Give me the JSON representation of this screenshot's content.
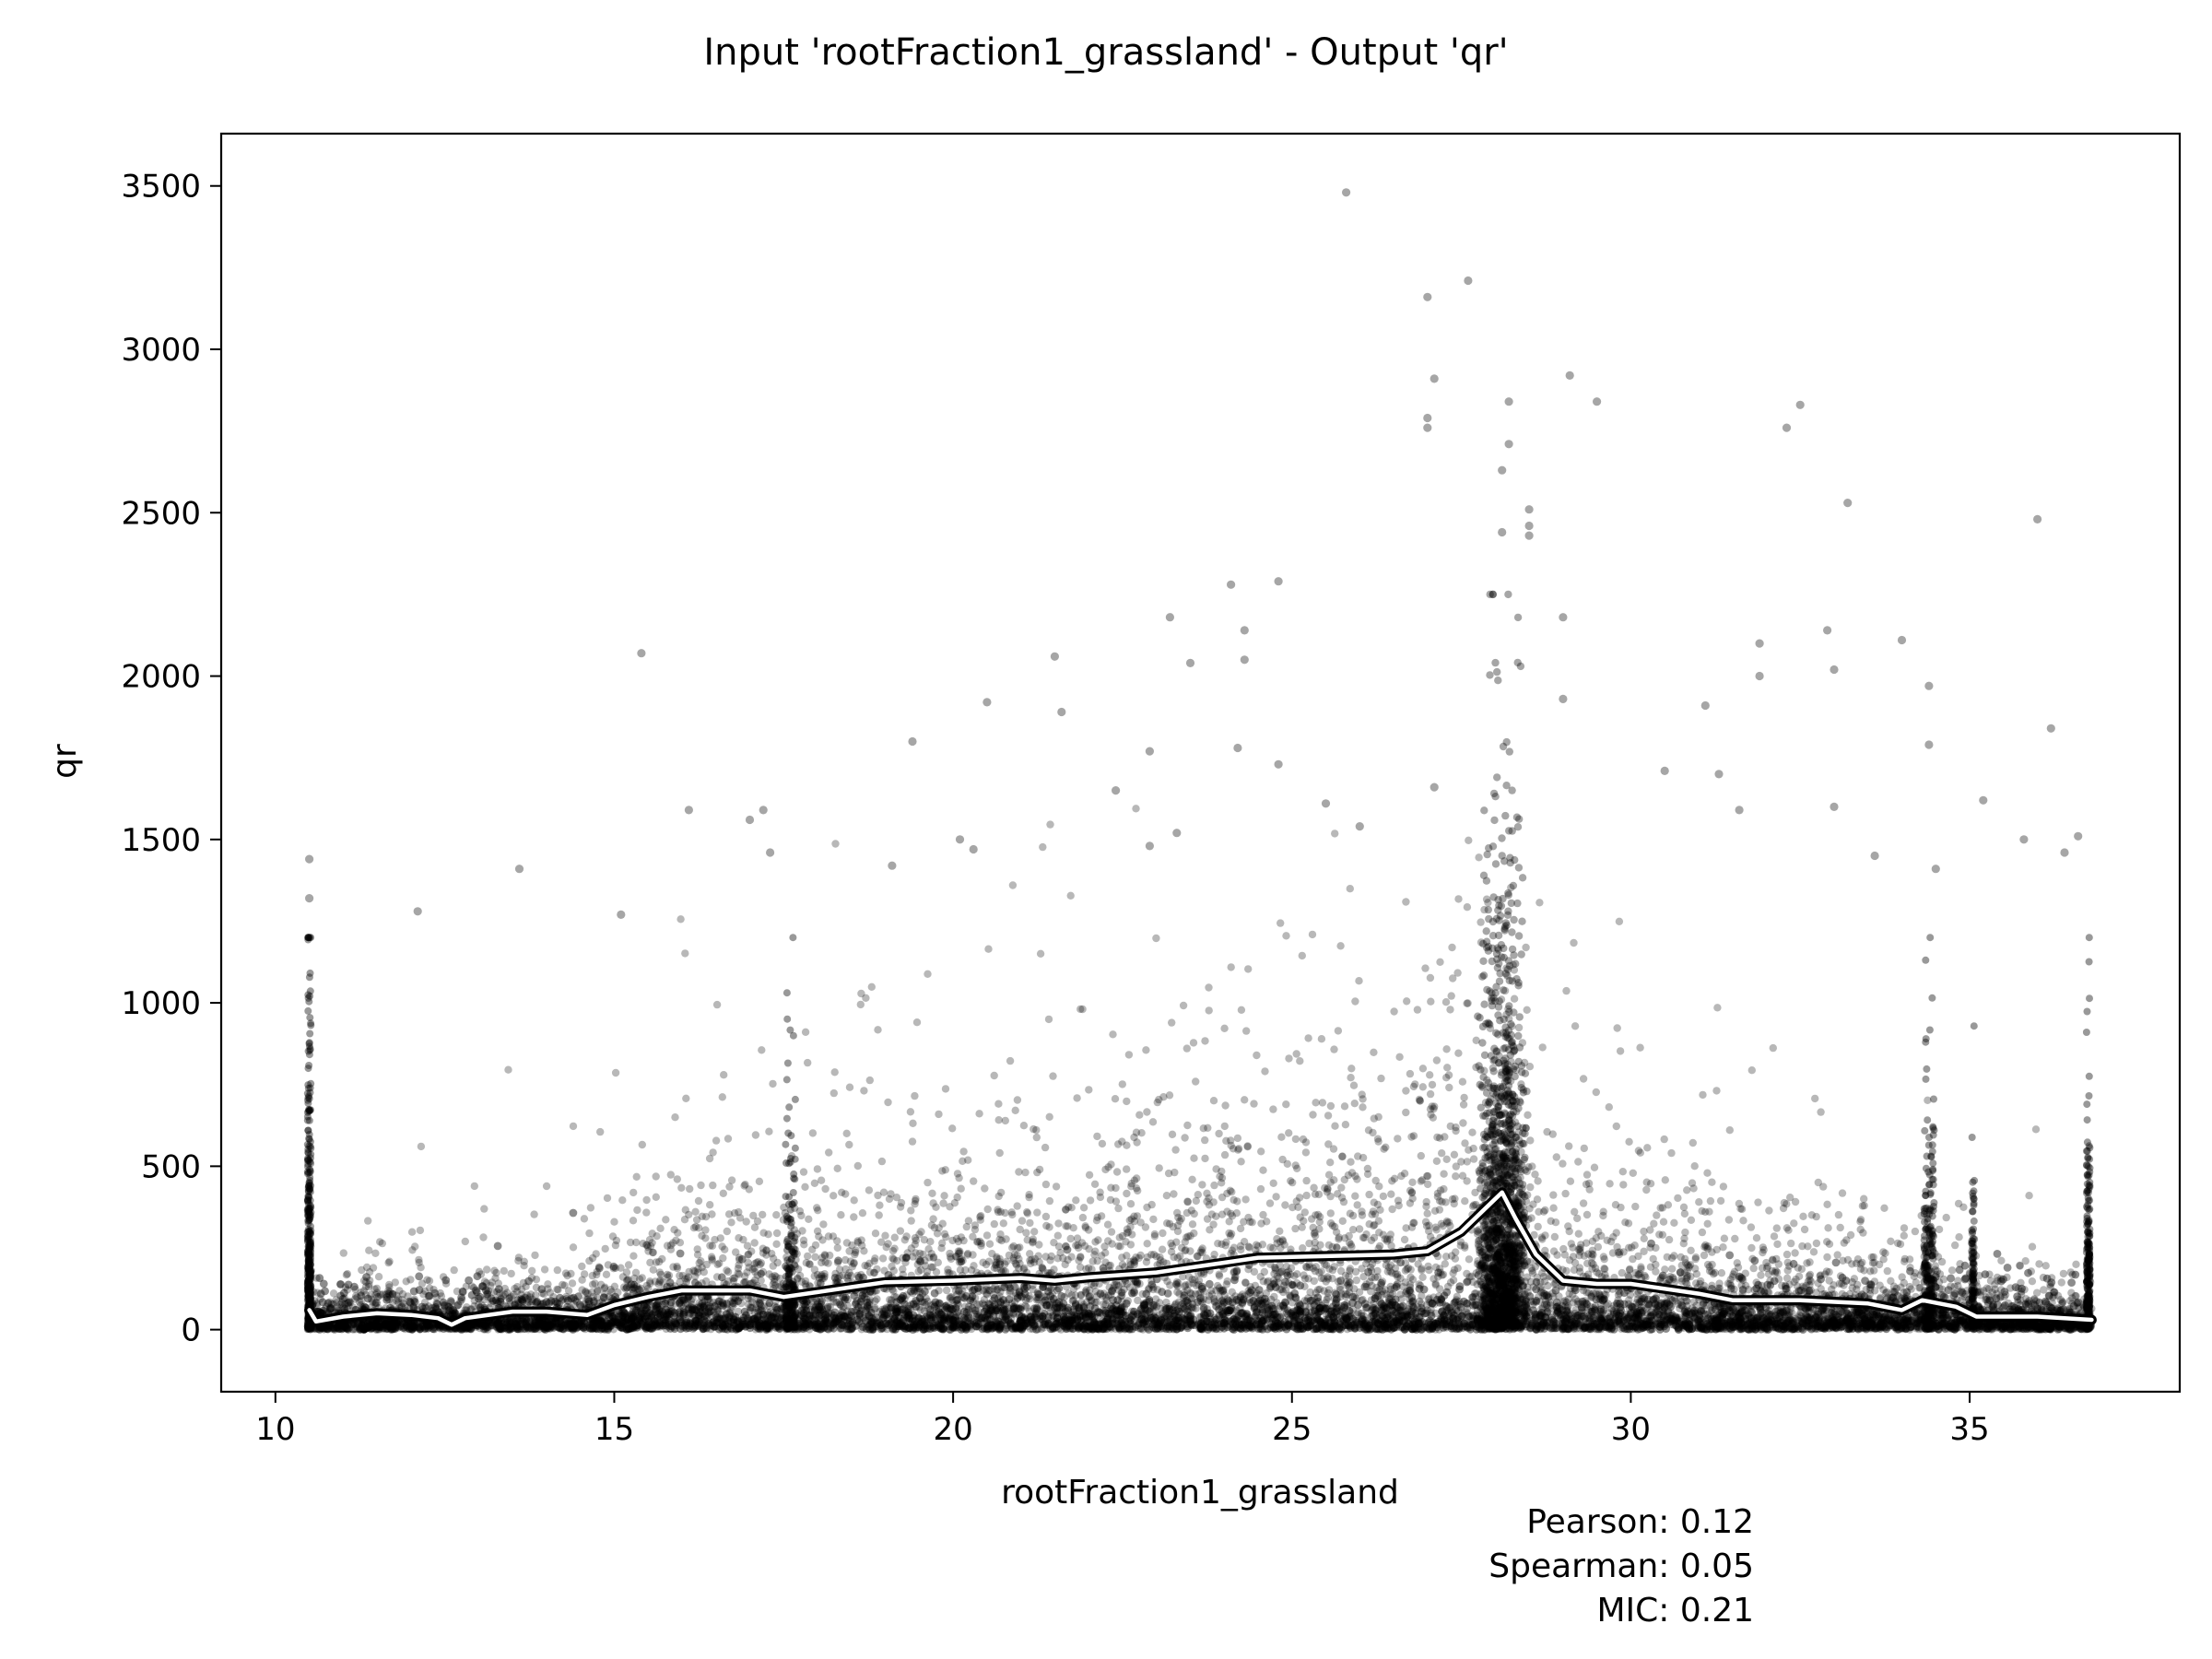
{
  "chart_data": {
    "type": "scatter",
    "title": "Input 'rootFraction1_grassland' - Output 'qr'",
    "xlabel": "rootFraction1_grassland",
    "ylabel": "qr",
    "xlim": [
      9.2,
      38.1
    ],
    "ylim": [
      -190,
      3660
    ],
    "x_ticks": [
      10,
      15,
      20,
      25,
      30,
      35
    ],
    "y_ticks": [
      0,
      500,
      1000,
      1500,
      2000,
      2500,
      3000,
      3500
    ],
    "grid": false,
    "x_range_points": [
      10.5,
      36.8
    ],
    "point_color": "#000000",
    "trend_color": "#ffffff",
    "outliers": [
      {
        "x": 25.8,
        "y": 3480
      },
      {
        "x": 27.6,
        "y": 3210
      },
      {
        "x": 27.0,
        "y": 3160
      },
      {
        "x": 29.1,
        "y": 2920
      },
      {
        "x": 27.1,
        "y": 2910
      },
      {
        "x": 28.2,
        "y": 2840
      },
      {
        "x": 32.5,
        "y": 2830
      },
      {
        "x": 29.5,
        "y": 2840
      },
      {
        "x": 27.0,
        "y": 2790
      },
      {
        "x": 27.0,
        "y": 2760
      },
      {
        "x": 32.3,
        "y": 2760
      },
      {
        "x": 28.2,
        "y": 2710
      },
      {
        "x": 28.1,
        "y": 2630
      },
      {
        "x": 33.2,
        "y": 2530
      },
      {
        "x": 28.5,
        "y": 2510
      },
      {
        "x": 36.0,
        "y": 2480
      },
      {
        "x": 28.5,
        "y": 2460
      },
      {
        "x": 28.1,
        "y": 2440
      },
      {
        "x": 28.5,
        "y": 2430
      },
      {
        "x": 24.8,
        "y": 2290
      },
      {
        "x": 24.1,
        "y": 2280
      },
      {
        "x": 23.2,
        "y": 2180
      },
      {
        "x": 29.0,
        "y": 2180
      },
      {
        "x": 24.3,
        "y": 2140
      },
      {
        "x": 32.9,
        "y": 2140
      },
      {
        "x": 34.0,
        "y": 2110
      },
      {
        "x": 31.9,
        "y": 2100
      },
      {
        "x": 15.4,
        "y": 2070
      },
      {
        "x": 21.5,
        "y": 2060
      },
      {
        "x": 24.3,
        "y": 2050
      },
      {
        "x": 23.5,
        "y": 2040
      },
      {
        "x": 33.0,
        "y": 2020
      },
      {
        "x": 31.9,
        "y": 2000
      },
      {
        "x": 34.4,
        "y": 1970
      },
      {
        "x": 20.5,
        "y": 1920
      },
      {
        "x": 29.0,
        "y": 1930
      },
      {
        "x": 31.1,
        "y": 1910
      },
      {
        "x": 21.6,
        "y": 1890
      },
      {
        "x": 36.2,
        "y": 1840
      },
      {
        "x": 19.4,
        "y": 1800
      },
      {
        "x": 34.4,
        "y": 1790
      },
      {
        "x": 22.9,
        "y": 1770
      },
      {
        "x": 24.2,
        "y": 1780
      },
      {
        "x": 30.5,
        "y": 1710
      },
      {
        "x": 31.3,
        "y": 1700
      },
      {
        "x": 22.4,
        "y": 1650
      },
      {
        "x": 35.2,
        "y": 1620
      },
      {
        "x": 16.1,
        "y": 1590
      },
      {
        "x": 17.2,
        "y": 1590
      },
      {
        "x": 17.0,
        "y": 1560
      },
      {
        "x": 31.6,
        "y": 1590
      },
      {
        "x": 20.1,
        "y": 1500
      },
      {
        "x": 20.3,
        "y": 1470
      },
      {
        "x": 17.3,
        "y": 1460
      },
      {
        "x": 13.6,
        "y": 1410
      },
      {
        "x": 19.1,
        "y": 1420
      },
      {
        "x": 12.1,
        "y": 1280
      },
      {
        "x": 10.5,
        "y": 1440
      },
      {
        "x": 10.5,
        "y": 1320
      },
      {
        "x": 15.1,
        "y": 1270
      },
      {
        "x": 36.6,
        "y": 1510
      },
      {
        "x": 36.4,
        "y": 1460
      },
      {
        "x": 35.8,
        "y": 1500
      },
      {
        "x": 34.5,
        "y": 1410
      },
      {
        "x": 33.6,
        "y": 1450
      },
      {
        "x": 33.0,
        "y": 1600
      },
      {
        "x": 22.9,
        "y": 1480
      },
      {
        "x": 23.3,
        "y": 1520
      },
      {
        "x": 24.8,
        "y": 1730
      },
      {
        "x": 25.5,
        "y": 1610
      },
      {
        "x": 26.0,
        "y": 1540
      },
      {
        "x": 27.1,
        "y": 1660
      }
    ],
    "trend_line": [
      {
        "x": 10.5,
        "y": 60
      },
      {
        "x": 10.6,
        "y": 25
      },
      {
        "x": 11.0,
        "y": 40
      },
      {
        "x": 11.5,
        "y": 50
      },
      {
        "x": 12.0,
        "y": 45
      },
      {
        "x": 12.4,
        "y": 35
      },
      {
        "x": 12.6,
        "y": 15
      },
      {
        "x": 12.8,
        "y": 35
      },
      {
        "x": 13.5,
        "y": 55
      },
      {
        "x": 14.0,
        "y": 55
      },
      {
        "x": 14.6,
        "y": 45
      },
      {
        "x": 15.0,
        "y": 75
      },
      {
        "x": 15.5,
        "y": 100
      },
      {
        "x": 16.0,
        "y": 120
      },
      {
        "x": 17.0,
        "y": 120
      },
      {
        "x": 17.5,
        "y": 100
      },
      {
        "x": 18.0,
        "y": 115
      },
      {
        "x": 18.5,
        "y": 130
      },
      {
        "x": 19.0,
        "y": 145
      },
      {
        "x": 20.0,
        "y": 150
      },
      {
        "x": 21.0,
        "y": 158
      },
      {
        "x": 21.5,
        "y": 150
      },
      {
        "x": 22.0,
        "y": 160
      },
      {
        "x": 23.0,
        "y": 175
      },
      {
        "x": 24.0,
        "y": 205
      },
      {
        "x": 24.5,
        "y": 220
      },
      {
        "x": 25.5,
        "y": 225
      },
      {
        "x": 26.5,
        "y": 230
      },
      {
        "x": 27.0,
        "y": 240
      },
      {
        "x": 27.5,
        "y": 300
      },
      {
        "x": 27.9,
        "y": 380
      },
      {
        "x": 28.1,
        "y": 420
      },
      {
        "x": 28.3,
        "y": 340
      },
      {
        "x": 28.6,
        "y": 230
      },
      {
        "x": 29.0,
        "y": 150
      },
      {
        "x": 29.5,
        "y": 140
      },
      {
        "x": 30.0,
        "y": 140
      },
      {
        "x": 30.5,
        "y": 125
      },
      {
        "x": 31.0,
        "y": 110
      },
      {
        "x": 31.5,
        "y": 90
      },
      {
        "x": 32.5,
        "y": 90
      },
      {
        "x": 33.5,
        "y": 80
      },
      {
        "x": 34.0,
        "y": 60
      },
      {
        "x": 34.3,
        "y": 90
      },
      {
        "x": 34.8,
        "y": 70
      },
      {
        "x": 35.1,
        "y": 40
      },
      {
        "x": 36.0,
        "y": 40
      },
      {
        "x": 36.8,
        "y": 30
      }
    ],
    "stats": [
      {
        "label": "Pearson: 0.12"
      },
      {
        "label": "Spearman: 0.05"
      },
      {
        "label": "MIC: 0.21"
      }
    ]
  }
}
